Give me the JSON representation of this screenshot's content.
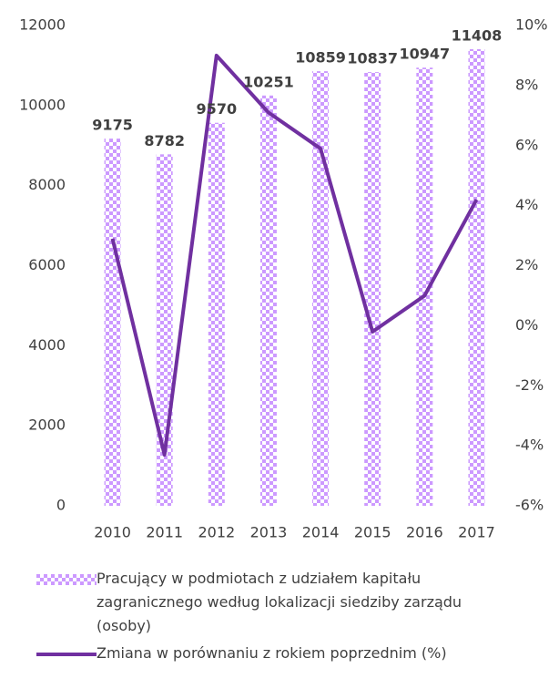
{
  "chart_data": {
    "type": "bar+line",
    "categories": [
      "2010",
      "2011",
      "2012",
      "2013",
      "2014",
      "2015",
      "2016",
      "2017"
    ],
    "series": [
      {
        "name": "Pracujący w podmiotach z udziałem kapitału zagranicznego według lokalizacji siedziby zarządu (osoby)",
        "type": "bar",
        "color": "#cc99ff",
        "values": [
          9175,
          8782,
          9570,
          10251,
          10859,
          10837,
          10947,
          11408
        ]
      },
      {
        "name": "Zmiana w porównaniu z rokiem poprzednim (%)",
        "type": "line",
        "axis": "y2",
        "color": "#7030a0",
        "values": [
          2.9,
          -4.3,
          9.0,
          7.1,
          5.9,
          -0.2,
          1.0,
          4.2
        ]
      }
    ],
    "ylim": [
      0,
      12000
    ],
    "yticks": [
      0,
      2000,
      4000,
      6000,
      8000,
      10000,
      12000
    ],
    "y2lim": [
      -6,
      10
    ],
    "y2ticks": [
      {
        "value": -6,
        "label": "-6%"
      },
      {
        "value": -4,
        "label": "-4%"
      },
      {
        "value": -2,
        "label": "-2%"
      },
      {
        "value": 0,
        "label": "0%"
      },
      {
        "value": 2,
        "label": "2%"
      },
      {
        "value": 4,
        "label": "4%"
      },
      {
        "value": 6,
        "label": "6%"
      },
      {
        "value": 8,
        "label": "8%"
      },
      {
        "value": 10,
        "label": "10%"
      }
    ],
    "grid": false
  }
}
